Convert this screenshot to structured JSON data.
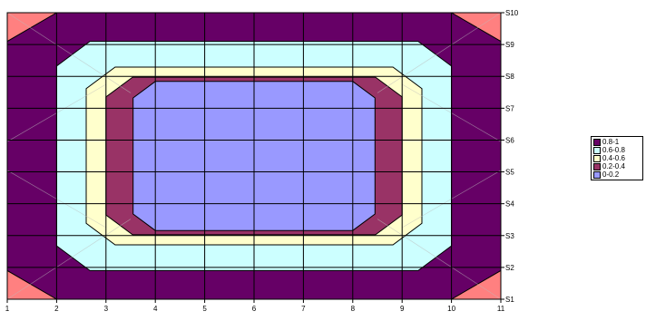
{
  "chart_data": {
    "type": "contour",
    "title": "",
    "x": {
      "ticks": [
        "1",
        "2",
        "3",
        "4",
        "5",
        "6",
        "7",
        "8",
        "9",
        "10",
        "11"
      ]
    },
    "y": {
      "ticks": [
        "S1",
        "S2",
        "S3",
        "S4",
        "S5",
        "S6",
        "S7",
        "S8",
        "S9",
        "S10"
      ]
    },
    "values_range": [
      0,
      1
    ],
    "bands": [
      {
        "label": "0.8-1",
        "color": "#660066"
      },
      {
        "label": "0.6-0.8",
        "color": "#CCFFFF"
      },
      {
        "label": "0.4-0.6",
        "color": "#FFFFCC"
      },
      {
        "label": "0.2-0.4",
        "color": "#993366"
      },
      {
        "label": "0-0.2",
        "color": "#9999FF"
      }
    ],
    "corner_color": "#FF8080",
    "grid": true,
    "legend_position": "right"
  }
}
